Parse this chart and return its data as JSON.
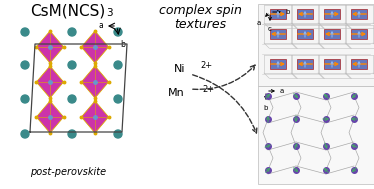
{
  "title": "CsM(NCS)",
  "title_sub": "3",
  "subtitle": "complex spin\ntextures",
  "label_post": "post-perovskite",
  "label_ni": "Ni",
  "label_ni_sup": "2+",
  "label_mn": "Mn",
  "label_mn_sup": "2+",
  "bg_color": "#ffffff",
  "text_color": "#000000",
  "oct_color": "#cc33aa",
  "oct_edge_color": "#ddaa00",
  "oct_center_color": "#6699cc",
  "cs_color": "#3a8a8a",
  "cell_line_color": "#444444",
  "ni_atom_color": "#6644aa",
  "ni_spin_color": "#44aa44",
  "ni_line_color": "#aaaaaa",
  "mn_rect_color": "#6677bb",
  "mn_rect_edge": "#aa2222",
  "mn_arrow_color": "#ff8800",
  "mn_arrow2_color": "#88bbff",
  "mn_line_color": "#aaaaaa",
  "dashed_color": "#333333"
}
